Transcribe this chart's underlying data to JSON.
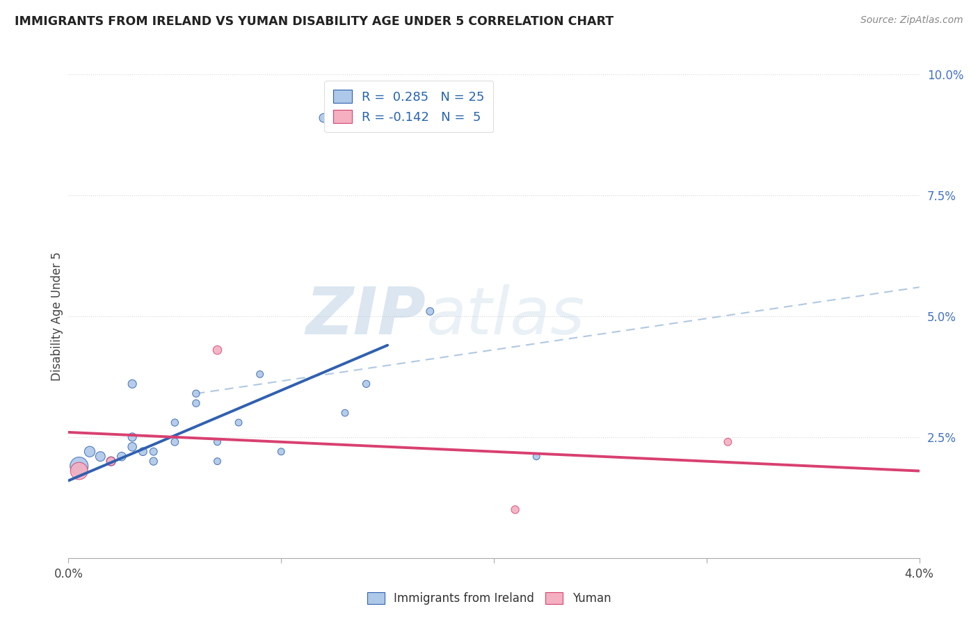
{
  "title": "IMMIGRANTS FROM IRELAND VS YUMAN DISABILITY AGE UNDER 5 CORRELATION CHART",
  "source": "Source: ZipAtlas.com",
  "ylabel": "Disability Age Under 5",
  "ytick_values": [
    0.0,
    0.025,
    0.05,
    0.075,
    0.1
  ],
  "xlim": [
    0.0,
    0.04
  ],
  "ylim": [
    0.0,
    0.1
  ],
  "legend_r1": "R =  0.285   N = 25",
  "legend_r2": "R = -0.142   N =  5",
  "ireland_color": "#adc8e8",
  "ireland_line_color": "#3060b0",
  "yuman_color": "#f4b0c0",
  "yuman_line_color": "#d84070",
  "dashed_line_color": "#b0c8e0",
  "background_color": "#ffffff",
  "watermark_zip": "ZIP",
  "watermark_atlas": "atlas",
  "ireland_points_x": [
    0.0005,
    0.001,
    0.0015,
    0.002,
    0.0025,
    0.003,
    0.003,
    0.003,
    0.0035,
    0.004,
    0.004,
    0.005,
    0.005,
    0.006,
    0.006,
    0.007,
    0.007,
    0.008,
    0.009,
    0.01,
    0.012,
    0.013,
    0.014,
    0.017,
    0.022
  ],
  "ireland_points_y": [
    0.019,
    0.022,
    0.021,
    0.02,
    0.021,
    0.023,
    0.025,
    0.036,
    0.022,
    0.02,
    0.022,
    0.024,
    0.028,
    0.032,
    0.034,
    0.02,
    0.024,
    0.028,
    0.038,
    0.022,
    0.091,
    0.03,
    0.036,
    0.051,
    0.021
  ],
  "ireland_sizes": [
    350,
    120,
    100,
    90,
    80,
    80,
    75,
    75,
    70,
    65,
    60,
    60,
    55,
    55,
    55,
    50,
    50,
    50,
    50,
    50,
    85,
    50,
    55,
    60,
    50
  ],
  "yuman_points_x": [
    0.0005,
    0.002,
    0.007,
    0.021,
    0.031
  ],
  "yuman_points_y": [
    0.018,
    0.02,
    0.043,
    0.01,
    0.024
  ],
  "yuman_sizes": [
    320,
    80,
    80,
    65,
    60
  ],
  "ireland_trend_x": [
    0.0,
    0.015
  ],
  "ireland_trend_y": [
    0.016,
    0.044
  ],
  "yuman_trend_x": [
    0.0,
    0.04
  ],
  "yuman_trend_y": [
    0.026,
    0.018
  ],
  "dashed_trend_x": [
    0.006,
    0.04
  ],
  "dashed_trend_y": [
    0.034,
    0.056
  ]
}
